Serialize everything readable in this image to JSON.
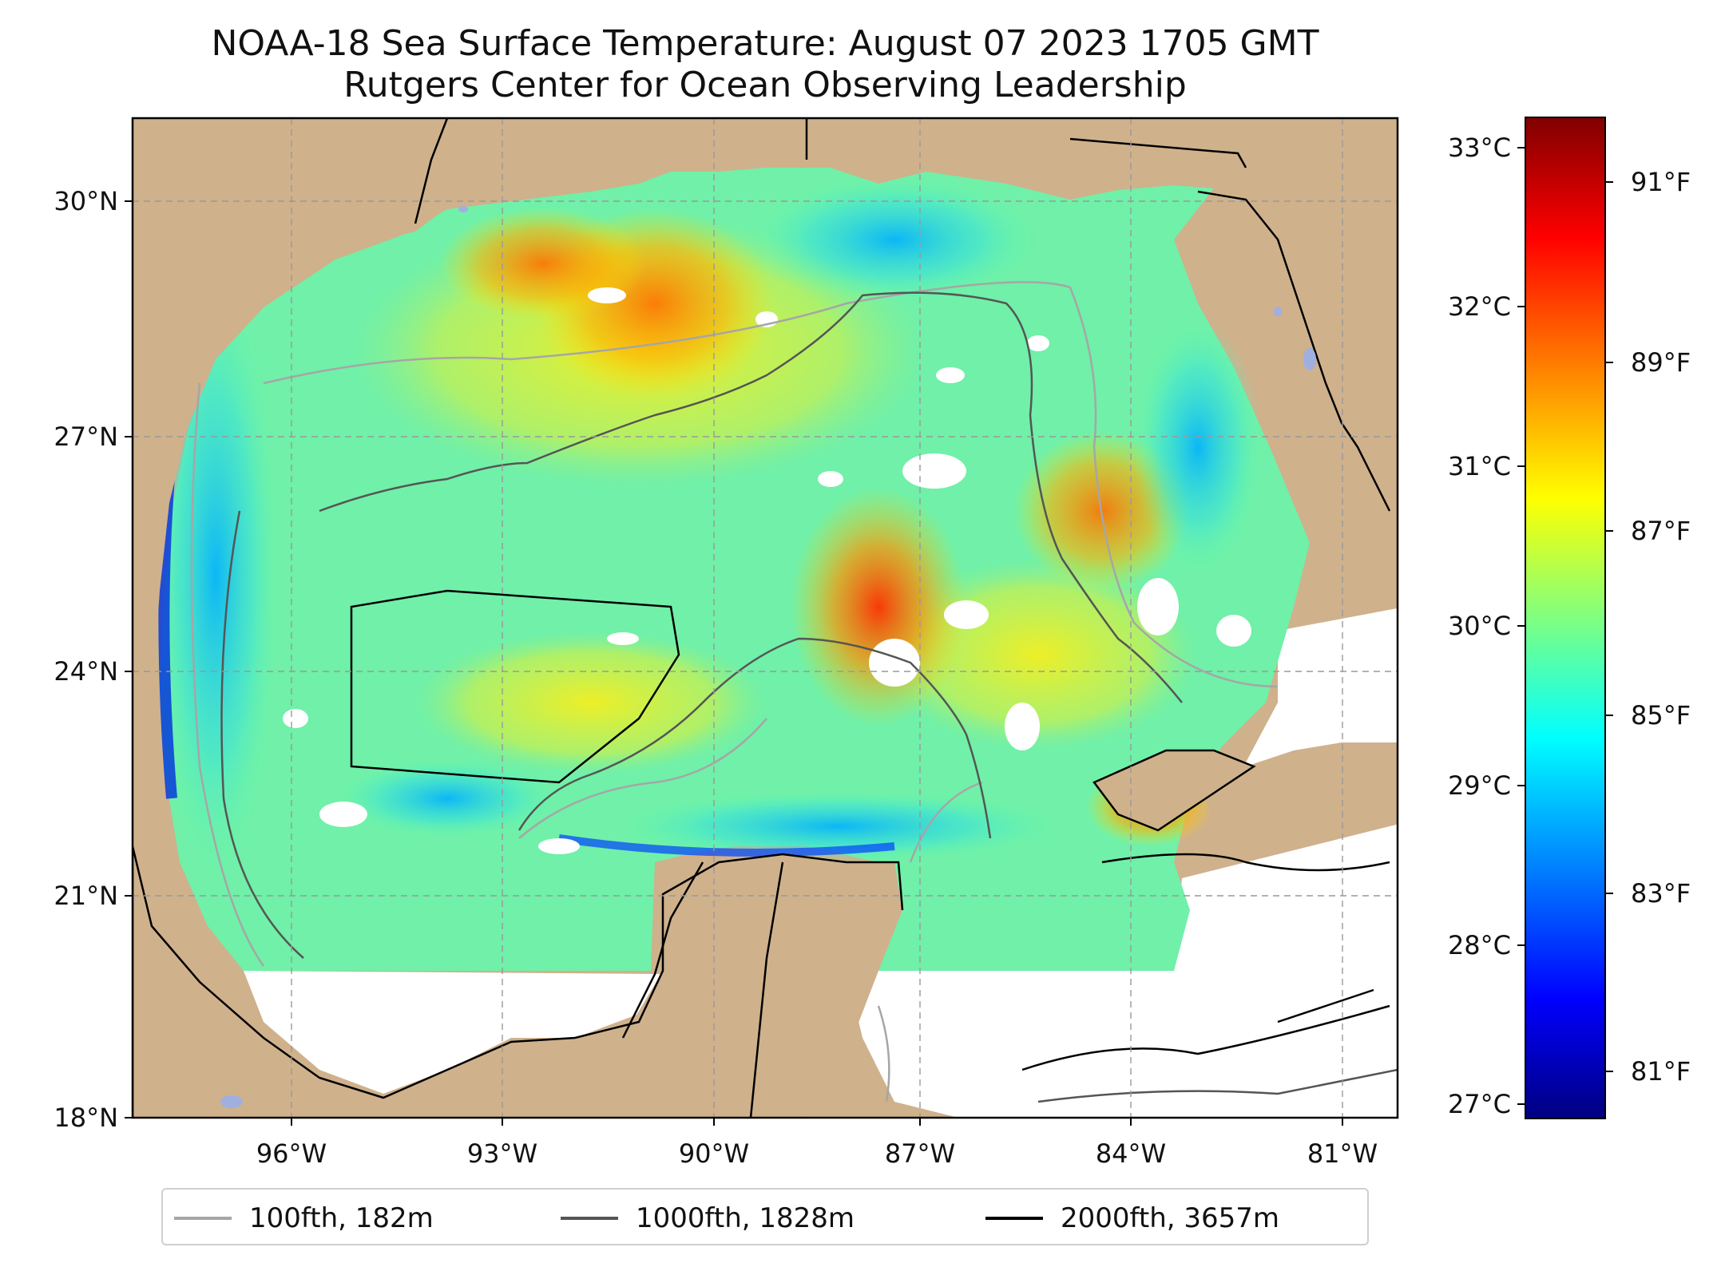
{
  "title": {
    "line1": "NOAA-18 Sea Surface Temperature: August 07 2023 1705 GMT",
    "line2": "Rutgers Center for Ocean Observing Leadership"
  },
  "map": {
    "lon_range": [
      -98.0,
      -80.0
    ],
    "lat_range": [
      18.0,
      31.0
    ],
    "lat_ticks": [
      "30°N",
      "27°N",
      "24°N",
      "21°N",
      "18°N"
    ],
    "lon_ticks": [
      "96°W",
      "93°W",
      "90°W",
      "87°W",
      "84°W",
      "81°W"
    ],
    "grid": true,
    "land_color": "#cfb18c",
    "no_data_color": "#ffffff"
  },
  "colorbar": {
    "celsius_ticks": [
      "33°C",
      "32°C",
      "31°C",
      "30°C",
      "29°C",
      "28°C",
      "27°C"
    ],
    "fahrenheit_ticks": [
      "91°F",
      "89°F",
      "87°F",
      "85°F",
      "83°F",
      "81°F"
    ],
    "colormap": "jet",
    "colors": [
      "#800000",
      "#ff0000",
      "#ff8000",
      "#ffff00",
      "#80ff80",
      "#00ffff",
      "#0080ff",
      "#0000ff",
      "#000080"
    ]
  },
  "legend": [
    {
      "label": "100fth, 182m",
      "color": "#a6a6a6"
    },
    {
      "label": "1000fth, 1828m",
      "color": "#555555"
    },
    {
      "label": "2000fth, 3657m",
      "color": "#000000"
    }
  ]
}
